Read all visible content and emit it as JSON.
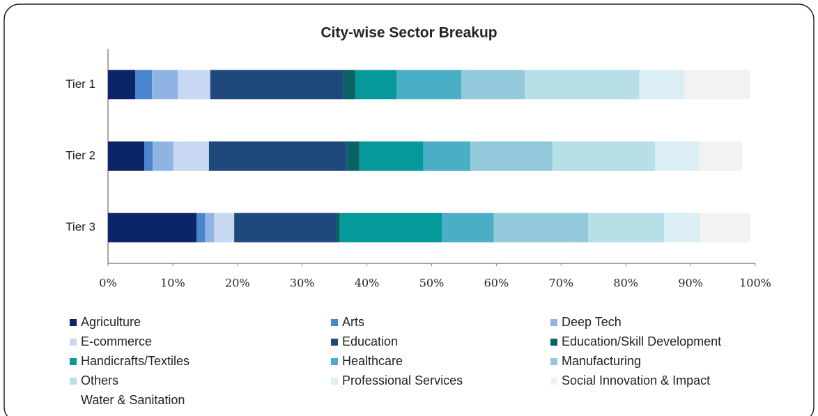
{
  "chart_data": {
    "type": "bar",
    "orientation": "horizontal",
    "stacked": true,
    "title": "City-wise Sector Breakup",
    "categories": [
      "Tier 1",
      "Tier 2",
      "Tier 3"
    ],
    "xlim": [
      0,
      100
    ],
    "xticks": [
      {
        "value": 0,
        "label": "0%"
      },
      {
        "value": 10,
        "label": "10%"
      },
      {
        "value": 20,
        "label": "20%"
      },
      {
        "value": 30,
        "label": "30%"
      },
      {
        "value": 40,
        "label": "40%"
      },
      {
        "value": 50,
        "label": "50%"
      },
      {
        "value": 60,
        "label": "60%"
      },
      {
        "value": 70,
        "label": "70%"
      },
      {
        "value": 80,
        "label": "80%"
      },
      {
        "value": 90,
        "label": "90%"
      },
      {
        "value": 100,
        "label": "100%"
      }
    ],
    "legend": "bottom",
    "series": [
      {
        "name": "Agriculture",
        "color": "#0b2566",
        "values": [
          4.2,
          5.6,
          13.7
        ]
      },
      {
        "name": "Arts",
        "color": "#4a86d0",
        "values": [
          2.6,
          1.3,
          1.3
        ]
      },
      {
        "name": "Deep Tech",
        "color": "#8fb4e3",
        "values": [
          4.0,
          3.2,
          1.4
        ]
      },
      {
        "name": "E-commerce",
        "color": "#c9d8f2",
        "values": [
          5.0,
          5.5,
          3.1
        ]
      },
      {
        "name": "Education",
        "color": "#1f497d",
        "values": [
          20.6,
          21.3,
          15.7
        ]
      },
      {
        "name": "Education/Skill Development",
        "color": "#0b6264",
        "values": [
          1.8,
          1.9,
          0.6
        ]
      },
      {
        "name": "Handicrafts/Textiles",
        "color": "#06999a",
        "values": [
          6.4,
          9.9,
          15.8
        ]
      },
      {
        "name": "Healthcare",
        "color": "#49aec6",
        "values": [
          10.0,
          7.3,
          8.0
        ]
      },
      {
        "name": "Manufacturing",
        "color": "#93cadb",
        "values": [
          9.8,
          12.7,
          14.6
        ]
      },
      {
        "name": "Others",
        "color": "#b7dfe6",
        "values": [
          17.7,
          15.8,
          11.7
        ]
      },
      {
        "name": "Professional Services",
        "color": "#dbeef5",
        "values": [
          7.0,
          6.8,
          5.6
        ]
      },
      {
        "name": "Social Innovation & Impact",
        "color": "#f2f2f2",
        "values": [
          10.1,
          6.7,
          7.8
        ]
      },
      {
        "name": "Water & Sanitation",
        "color": "#ffffff",
        "values": [
          0,
          0,
          0
        ]
      }
    ]
  }
}
